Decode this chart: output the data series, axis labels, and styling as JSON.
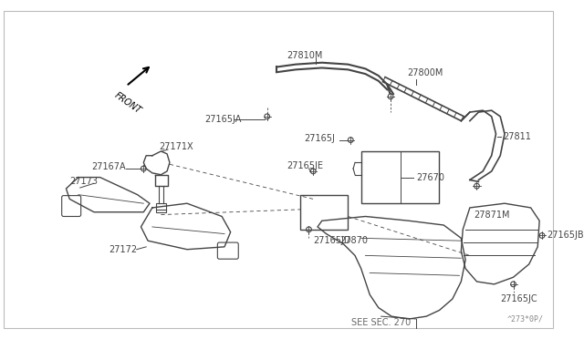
{
  "bg_color": "#ffffff",
  "border_color": "#bbbbbb",
  "line_color": "#444444",
  "part_color": "#444444",
  "label_color": "#444444",
  "watermark": "^273*0P/",
  "see_sec": "SEE SEC. 270",
  "front_label": "FRONT"
}
